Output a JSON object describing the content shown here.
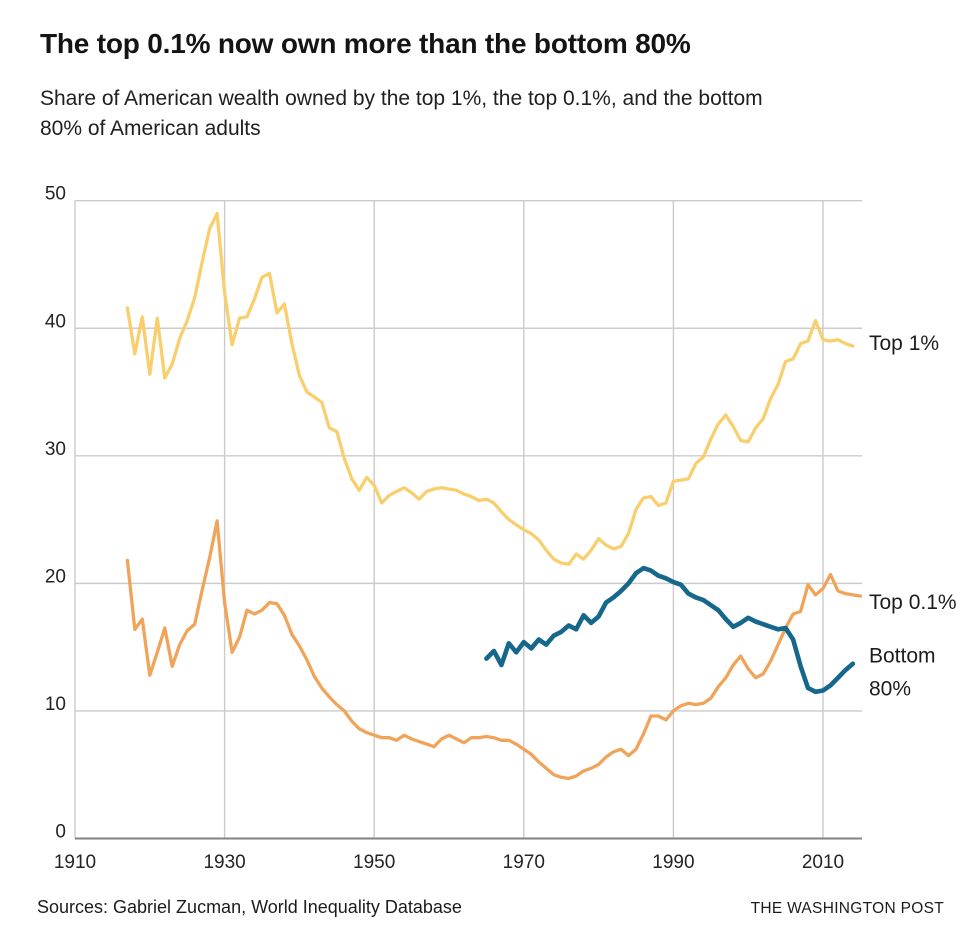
{
  "chart_data": {
    "type": "line",
    "title": "The top 0.1% now own more than the bottom 80%",
    "subtitle": "Share of American wealth owned by the top 1%, the top 0.1%, and the bottom 80% of American adults",
    "subtitle_lines": [
      "Share of American wealth owned by the top 1%, the top 0.1%, and the bottom",
      "80% of American adults"
    ],
    "source": "Sources: Gabriel Zucman, World Inequality Database",
    "publisher": "THE WASHINGTON POST",
    "x_ticks": [
      1910,
      1930,
      1950,
      1970,
      1990,
      2010
    ],
    "y_ticks": [
      0,
      10,
      20,
      30,
      40,
      50
    ],
    "x_range": [
      1910,
      2015.3
    ],
    "ylim": [
      0,
      50
    ],
    "grid": true,
    "legend_position": "right-of-line-ends",
    "colors": {
      "top_1": "#F9CF6E",
      "top_01": "#F0A45A",
      "bottom_80": "#15688C",
      "gridline": "#CBCBCB",
      "axis": "#828282",
      "text": "#242424"
    },
    "series": [
      {
        "name": "Top 1%",
        "label_lines": [
          "Top 1%"
        ],
        "color": "#F9CF6E",
        "stroke_width": 3.3,
        "points": [
          [
            1917,
            41.6
          ],
          [
            1918,
            38.0
          ],
          [
            1919,
            40.9
          ],
          [
            1920,
            36.4
          ],
          [
            1921,
            40.8
          ],
          [
            1922,
            36.1
          ],
          [
            1923,
            37.2
          ],
          [
            1924,
            39.2
          ],
          [
            1925,
            40.6
          ],
          [
            1926,
            42.4
          ],
          [
            1927,
            45.2
          ],
          [
            1928,
            47.8
          ],
          [
            1929,
            49.0
          ],
          [
            1930,
            42.8
          ],
          [
            1931,
            38.7
          ],
          [
            1932,
            40.8
          ],
          [
            1933,
            40.9
          ],
          [
            1934,
            42.3
          ],
          [
            1935,
            44.0
          ],
          [
            1936,
            44.3
          ],
          [
            1937,
            41.2
          ],
          [
            1938,
            41.9
          ],
          [
            1939,
            38.8
          ],
          [
            1940,
            36.3
          ],
          [
            1941,
            35.0
          ],
          [
            1942,
            34.6
          ],
          [
            1943,
            34.2
          ],
          [
            1944,
            32.2
          ],
          [
            1945,
            31.9
          ],
          [
            1946,
            29.8
          ],
          [
            1947,
            28.2
          ],
          [
            1948,
            27.3
          ],
          [
            1949,
            28.3
          ],
          [
            1950,
            27.7
          ],
          [
            1951,
            26.3
          ],
          [
            1952,
            26.9
          ],
          [
            1953,
            27.2
          ],
          [
            1954,
            27.5
          ],
          [
            1955,
            27.1
          ],
          [
            1956,
            26.6
          ],
          [
            1957,
            27.2
          ],
          [
            1958,
            27.4
          ],
          [
            1959,
            27.5
          ],
          [
            1960,
            27.4
          ],
          [
            1961,
            27.3
          ],
          [
            1962,
            27.0
          ],
          [
            1963,
            26.8
          ],
          [
            1964,
            26.5
          ],
          [
            1965,
            26.6
          ],
          [
            1966,
            26.3
          ],
          [
            1967,
            25.6
          ],
          [
            1968,
            25.0
          ],
          [
            1969,
            24.6
          ],
          [
            1970,
            24.2
          ],
          [
            1971,
            23.9
          ],
          [
            1972,
            23.4
          ],
          [
            1973,
            22.6
          ],
          [
            1974,
            21.9
          ],
          [
            1975,
            21.6
          ],
          [
            1976,
            21.5
          ],
          [
            1977,
            22.3
          ],
          [
            1978,
            21.9
          ],
          [
            1979,
            22.6
          ],
          [
            1980,
            23.5
          ],
          [
            1981,
            23.0
          ],
          [
            1982,
            22.7
          ],
          [
            1983,
            22.9
          ],
          [
            1984,
            23.9
          ],
          [
            1985,
            25.8
          ],
          [
            1986,
            26.7
          ],
          [
            1987,
            26.8
          ],
          [
            1988,
            26.1
          ],
          [
            1989,
            26.3
          ],
          [
            1990,
            28.0
          ],
          [
            1991,
            28.1
          ],
          [
            1992,
            28.2
          ],
          [
            1993,
            29.4
          ],
          [
            1994,
            29.9
          ],
          [
            1995,
            31.3
          ],
          [
            1996,
            32.5
          ],
          [
            1997,
            33.2
          ],
          [
            1998,
            32.3
          ],
          [
            1999,
            31.2
          ],
          [
            2000,
            31.1
          ],
          [
            2001,
            32.2
          ],
          [
            2002,
            32.9
          ],
          [
            2003,
            34.5
          ],
          [
            2004,
            35.6
          ],
          [
            2005,
            37.4
          ],
          [
            2006,
            37.6
          ],
          [
            2007,
            38.8
          ],
          [
            2008,
            39.0
          ],
          [
            2009,
            40.6
          ],
          [
            2010,
            39.1
          ],
          [
            2011,
            39.0
          ],
          [
            2012,
            39.1
          ],
          [
            2013,
            38.8
          ],
          [
            2014,
            38.6
          ]
        ]
      },
      {
        "name": "Top 0.1%",
        "label_lines": [
          "Top 0.1%"
        ],
        "color": "#F0A45A",
        "stroke_width": 3.3,
        "points": [
          [
            1917,
            21.8
          ],
          [
            1918,
            16.4
          ],
          [
            1919,
            17.2
          ],
          [
            1920,
            12.8
          ],
          [
            1921,
            14.6
          ],
          [
            1922,
            16.5
          ],
          [
            1923,
            13.5
          ],
          [
            1924,
            15.2
          ],
          [
            1925,
            16.3
          ],
          [
            1926,
            16.8
          ],
          [
            1927,
            19.5
          ],
          [
            1928,
            22.0
          ],
          [
            1929,
            24.9
          ],
          [
            1930,
            18.5
          ],
          [
            1931,
            14.6
          ],
          [
            1932,
            15.8
          ],
          [
            1933,
            17.9
          ],
          [
            1934,
            17.6
          ],
          [
            1935,
            17.9
          ],
          [
            1936,
            18.5
          ],
          [
            1937,
            18.4
          ],
          [
            1938,
            17.5
          ],
          [
            1939,
            16.0
          ],
          [
            1940,
            15.1
          ],
          [
            1941,
            14.0
          ],
          [
            1942,
            12.7
          ],
          [
            1943,
            11.8
          ],
          [
            1944,
            11.1
          ],
          [
            1945,
            10.5
          ],
          [
            1946,
            10.0
          ],
          [
            1947,
            9.2
          ],
          [
            1948,
            8.6
          ],
          [
            1949,
            8.3
          ],
          [
            1950,
            8.1
          ],
          [
            1951,
            7.9
          ],
          [
            1952,
            7.9
          ],
          [
            1953,
            7.7
          ],
          [
            1954,
            8.1
          ],
          [
            1955,
            7.8
          ],
          [
            1956,
            7.6
          ],
          [
            1957,
            7.4
          ],
          [
            1958,
            7.2
          ],
          [
            1959,
            7.8
          ],
          [
            1960,
            8.1
          ],
          [
            1961,
            7.8
          ],
          [
            1962,
            7.5
          ],
          [
            1963,
            7.9
          ],
          [
            1964,
            7.9
          ],
          [
            1965,
            8.0
          ],
          [
            1966,
            7.9
          ],
          [
            1967,
            7.7
          ],
          [
            1968,
            7.7
          ],
          [
            1969,
            7.4
          ],
          [
            1970,
            7.0
          ],
          [
            1971,
            6.6
          ],
          [
            1972,
            6.0
          ],
          [
            1973,
            5.5
          ],
          [
            1974,
            5.0
          ],
          [
            1975,
            4.8
          ],
          [
            1976,
            4.7
          ],
          [
            1977,
            4.9
          ],
          [
            1978,
            5.3
          ],
          [
            1979,
            5.5
          ],
          [
            1980,
            5.8
          ],
          [
            1981,
            6.4
          ],
          [
            1982,
            6.8
          ],
          [
            1983,
            7.0
          ],
          [
            1984,
            6.5
          ],
          [
            1985,
            7.0
          ],
          [
            1986,
            8.2
          ],
          [
            1987,
            9.6
          ],
          [
            1988,
            9.6
          ],
          [
            1989,
            9.3
          ],
          [
            1990,
            10.0
          ],
          [
            1991,
            10.4
          ],
          [
            1992,
            10.6
          ],
          [
            1993,
            10.5
          ],
          [
            1994,
            10.6
          ],
          [
            1995,
            11.0
          ],
          [
            1996,
            11.9
          ],
          [
            1997,
            12.6
          ],
          [
            1998,
            13.6
          ],
          [
            1999,
            14.3
          ],
          [
            2000,
            13.3
          ],
          [
            2001,
            12.6
          ],
          [
            2002,
            12.9
          ],
          [
            2003,
            13.9
          ],
          [
            2004,
            15.2
          ],
          [
            2005,
            16.5
          ],
          [
            2006,
            17.6
          ],
          [
            2007,
            17.8
          ],
          [
            2008,
            19.9
          ],
          [
            2009,
            19.1
          ],
          [
            2010,
            19.6
          ],
          [
            2011,
            20.7
          ],
          [
            2012,
            19.4
          ],
          [
            2013,
            19.2
          ],
          [
            2014,
            19.1
          ],
          [
            2015,
            19.0
          ]
        ]
      },
      {
        "name": "Bottom 80%",
        "label_lines": [
          "Bottom",
          "80%"
        ],
        "color": "#15688C",
        "stroke_width": 4.6,
        "points": [
          [
            1965,
            14.1
          ],
          [
            1966,
            14.7
          ],
          [
            1967,
            13.6
          ],
          [
            1968,
            15.3
          ],
          [
            1969,
            14.6
          ],
          [
            1970,
            15.4
          ],
          [
            1971,
            14.9
          ],
          [
            1972,
            15.6
          ],
          [
            1973,
            15.2
          ],
          [
            1974,
            15.9
          ],
          [
            1975,
            16.2
          ],
          [
            1976,
            16.7
          ],
          [
            1977,
            16.4
          ],
          [
            1978,
            17.5
          ],
          [
            1979,
            16.9
          ],
          [
            1980,
            17.4
          ],
          [
            1981,
            18.5
          ],
          [
            1982,
            18.9
          ],
          [
            1983,
            19.4
          ],
          [
            1984,
            20.0
          ],
          [
            1985,
            20.8
          ],
          [
            1986,
            21.2
          ],
          [
            1987,
            21.0
          ],
          [
            1988,
            20.6
          ],
          [
            1989,
            20.4
          ],
          [
            1990,
            20.1
          ],
          [
            1991,
            19.9
          ],
          [
            1992,
            19.2
          ],
          [
            1993,
            18.9
          ],
          [
            1994,
            18.7
          ],
          [
            1995,
            18.3
          ],
          [
            1996,
            17.9
          ],
          [
            1997,
            17.2
          ],
          [
            1998,
            16.6
          ],
          [
            1999,
            16.9
          ],
          [
            2000,
            17.3
          ],
          [
            2001,
            17.0
          ],
          [
            2002,
            16.8
          ],
          [
            2003,
            16.6
          ],
          [
            2004,
            16.4
          ],
          [
            2005,
            16.5
          ],
          [
            2006,
            15.6
          ],
          [
            2007,
            13.5
          ],
          [
            2008,
            11.8
          ],
          [
            2009,
            11.5
          ],
          [
            2010,
            11.6
          ],
          [
            2011,
            12.0
          ],
          [
            2012,
            12.6
          ],
          [
            2013,
            13.2
          ],
          [
            2014,
            13.7
          ]
        ]
      }
    ]
  }
}
